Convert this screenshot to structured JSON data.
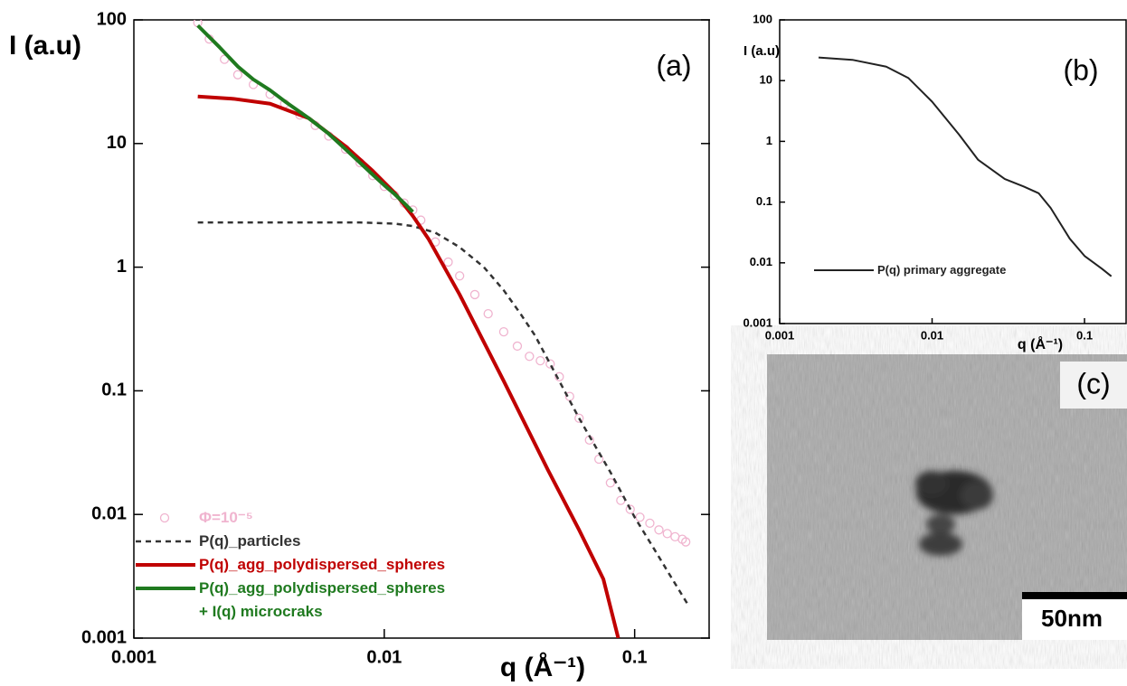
{
  "chart_data": [
    {
      "type": "line",
      "title": "(a)",
      "x_label": "q (Å⁻¹)",
      "y_label": "I (a.u)",
      "xscale": "log",
      "yscale": "log",
      "xlim": [
        0.001,
        0.2
      ],
      "ylim": [
        0.001,
        100
      ],
      "xticks": [
        0.001,
        0.01,
        0.1
      ],
      "yticks": [
        0.001,
        0.01,
        0.1,
        1,
        10,
        100
      ],
      "legend": "lower left",
      "series": [
        {
          "name": "Φ=10⁻⁵",
          "color": "#f0b4cf",
          "marker": "circle",
          "x": [
            0.0018,
            0.002,
            0.0023,
            0.0026,
            0.003,
            0.0035,
            0.004,
            0.0046,
            0.0053,
            0.006,
            0.007,
            0.008,
            0.009,
            0.01,
            0.011,
            0.012,
            0.013,
            0.014,
            0.016,
            0.018,
            0.02,
            0.023,
            0.026,
            0.03,
            0.034,
            0.038,
            0.042,
            0.046,
            0.05,
            0.055,
            0.06,
            0.066,
            0.072,
            0.08,
            0.088,
            0.096,
            0.105,
            0.115,
            0.125,
            0.135,
            0.145,
            0.155,
            0.16
          ],
          "values": [
            95,
            70,
            48,
            36,
            30,
            25,
            21,
            17,
            14,
            11.5,
            9,
            7,
            5.5,
            4.5,
            3.8,
            3.3,
            2.9,
            2.4,
            1.6,
            1.1,
            0.85,
            0.6,
            0.42,
            0.3,
            0.23,
            0.19,
            0.175,
            0.165,
            0.13,
            0.09,
            0.06,
            0.04,
            0.028,
            0.018,
            0.013,
            0.011,
            0.0095,
            0.0085,
            0.0075,
            0.007,
            0.0066,
            0.0063,
            0.006
          ]
        },
        {
          "name": "P(q)_particles",
          "color": "#333333",
          "dash": true,
          "x": [
            0.0018,
            0.003,
            0.005,
            0.008,
            0.011,
            0.013,
            0.016,
            0.02,
            0.025,
            0.03,
            0.035,
            0.04,
            0.05,
            0.06,
            0.07,
            0.08,
            0.1,
            0.12,
            0.14,
            0.165
          ],
          "values": [
            2.3,
            2.3,
            2.3,
            2.3,
            2.25,
            2.15,
            1.9,
            1.45,
            1.0,
            0.65,
            0.42,
            0.28,
            0.12,
            0.06,
            0.035,
            0.022,
            0.0095,
            0.0052,
            0.0031,
            0.0018
          ]
        },
        {
          "name": "P(q)_agg_polydispersed_spheres",
          "color": "#c00000",
          "x": [
            0.0018,
            0.0025,
            0.0035,
            0.005,
            0.007,
            0.009,
            0.011,
            0.013,
            0.015,
            0.02,
            0.03,
            0.045,
            0.06,
            0.075,
            0.086
          ],
          "values": [
            24,
            23,
            21,
            16,
            9.5,
            6,
            4,
            2.6,
            1.7,
            0.6,
            0.12,
            0.023,
            0.0075,
            0.003,
            0.001
          ]
        },
        {
          "name": "P(q)_agg_polydispersed_spheres\n+ I(q) microcraks",
          "color": "#1f7a1f",
          "x": [
            0.0018,
            0.0022,
            0.0026,
            0.003,
            0.0035,
            0.004,
            0.005,
            0.006,
            0.007,
            0.008,
            0.009,
            0.01,
            0.011,
            0.012,
            0.013
          ],
          "values": [
            90,
            60,
            42,
            33,
            27,
            22,
            16,
            12,
            9,
            7,
            5.6,
            4.6,
            3.9,
            3.3,
            2.8
          ]
        }
      ]
    },
    {
      "type": "line",
      "title": "(b)",
      "x_label": "q (Å⁻¹)",
      "y_label": "I (a.u)",
      "xscale": "log",
      "yscale": "log",
      "xlim": [
        0.001,
        0.19
      ],
      "ylim": [
        0.001,
        100
      ],
      "xticks": [
        0.001,
        0.01,
        0.1
      ],
      "yticks": [
        0.001,
        0.01,
        0.1,
        1,
        10,
        100
      ],
      "legend": "lower left",
      "series": [
        {
          "name": "P(q) primary aggregate",
          "color": "#222222",
          "x": [
            0.0018,
            0.003,
            0.005,
            0.007,
            0.01,
            0.015,
            0.02,
            0.03,
            0.04,
            0.05,
            0.06,
            0.08,
            0.1,
            0.13,
            0.15
          ],
          "values": [
            24,
            22,
            17,
            11,
            4.5,
            1.3,
            0.5,
            0.24,
            0.18,
            0.14,
            0.08,
            0.025,
            0.013,
            0.008,
            0.006
          ]
        }
      ]
    }
  ],
  "image_panel": {
    "label": "(c)",
    "scale_bar": "50nm"
  }
}
